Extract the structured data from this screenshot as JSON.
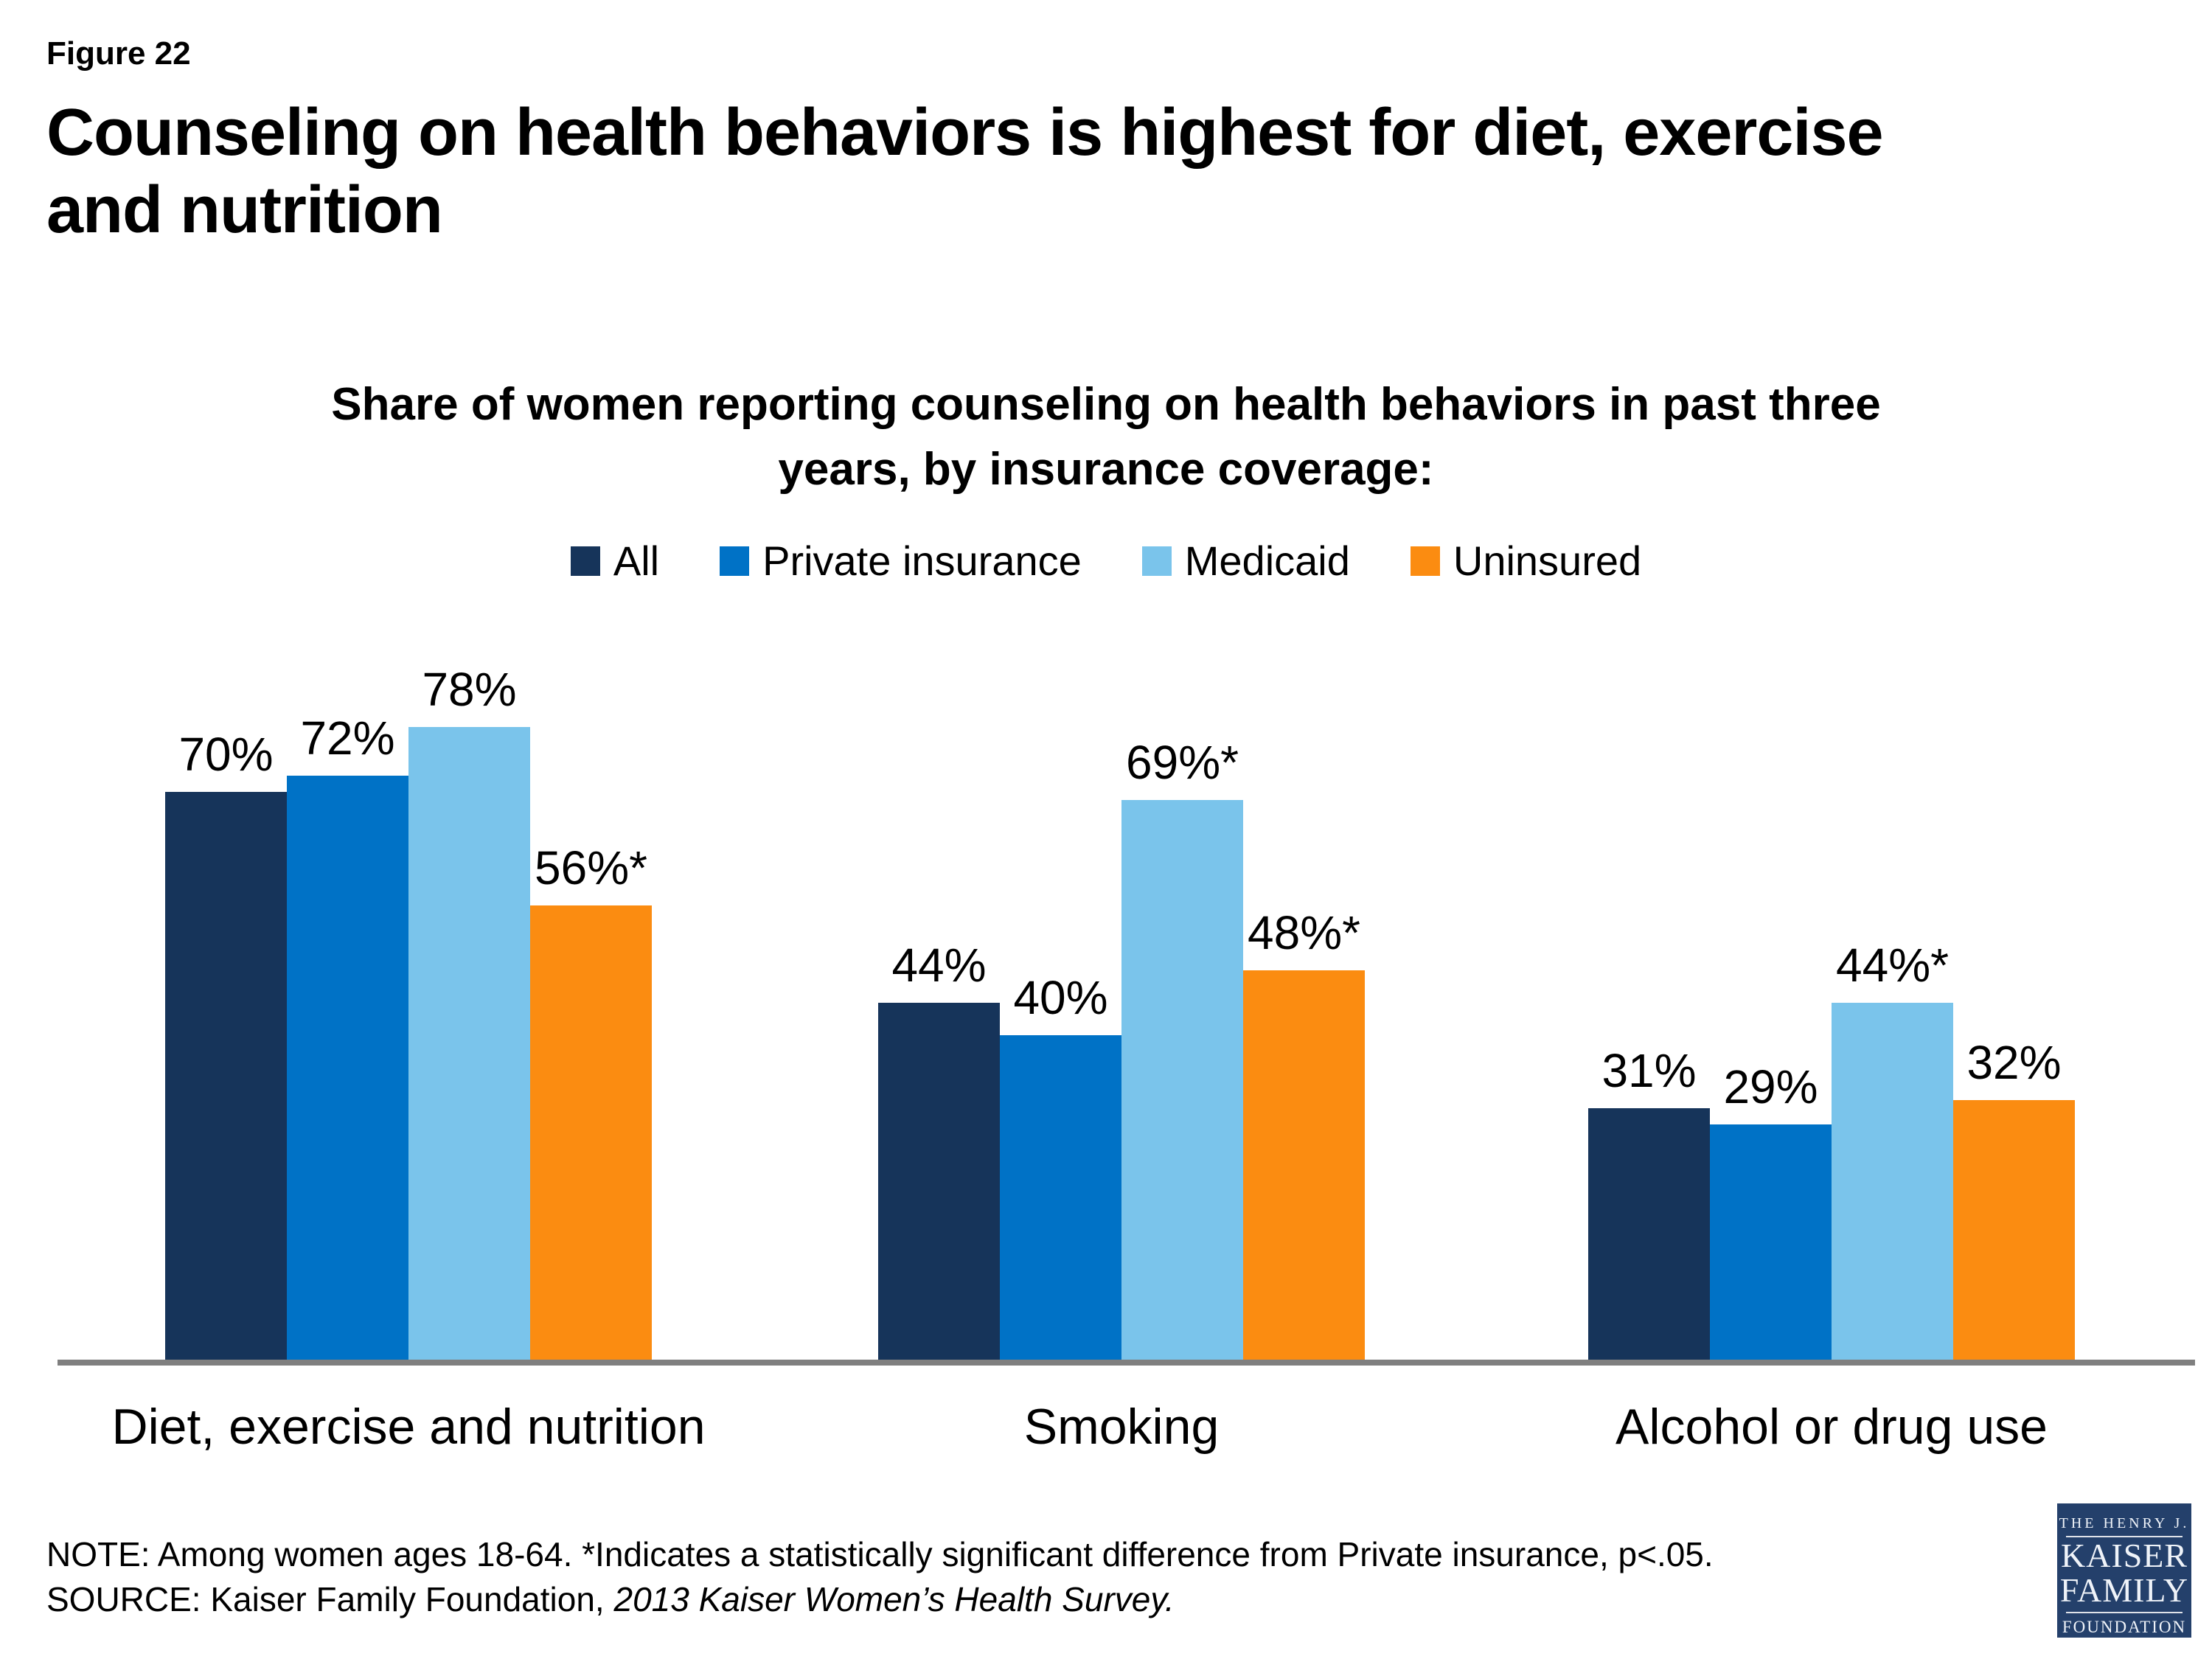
{
  "figure_label": "Figure 22",
  "title_lines": [
    "Counseling on health behaviors is highest for diet, exercise",
    "and nutrition"
  ],
  "subtitle_lines": [
    "Share of women reporting counseling on health behaviors in past three",
    "years, by insurance coverage:"
  ],
  "legend": [
    {
      "label": "All",
      "color": "#16345A"
    },
    {
      "label": "Private insurance",
      "color": "#0072C6"
    },
    {
      "label": "Medicaid",
      "color": "#7AC4EB"
    },
    {
      "label": "Uninsured",
      "color": "#FB8C11"
    }
  ],
  "chart_data": {
    "type": "bar",
    "categories": [
      "Diet, exercise and nutrition",
      "Smoking",
      "Alcohol or drug use"
    ],
    "series": [
      {
        "name": "All",
        "color": "#16345A",
        "values": [
          70,
          44,
          31
        ],
        "labels": [
          "70%",
          "44%",
          "31%"
        ]
      },
      {
        "name": "Private insurance",
        "color": "#0072C6",
        "values": [
          72,
          40,
          29
        ],
        "labels": [
          "72%",
          "40%",
          "29%"
        ]
      },
      {
        "name": "Medicaid",
        "color": "#7AC4EB",
        "values": [
          78,
          69,
          44
        ],
        "labels": [
          "78%",
          "69%*",
          "44%*"
        ]
      },
      {
        "name": "Uninsured",
        "color": "#FB8C11",
        "values": [
          56,
          48,
          32
        ],
        "labels": [
          "56%*",
          "48%*",
          "32%"
        ]
      }
    ],
    "ylim": [
      0,
      100
    ],
    "value_suffix": "%",
    "grid": false,
    "legend_position": "top",
    "axis_line_color": "#7F7F7F",
    "note": "*Indicates a statistically significant difference from Private insurance, p<.05."
  },
  "note_line": "NOTE: Among women ages 18-64. *Indicates a statistically significant difference from Private insurance, p<.05.",
  "source_prefix": "SOURCE: Kaiser Family Foundation, ",
  "source_italic": "2013 Kaiser Women’s Health Survey.",
  "logo": {
    "line1": "THE HENRY J.",
    "line2": "KAISER",
    "line3": "FAMILY",
    "line4": "FOUNDATION",
    "bg_color": "#24406B"
  }
}
